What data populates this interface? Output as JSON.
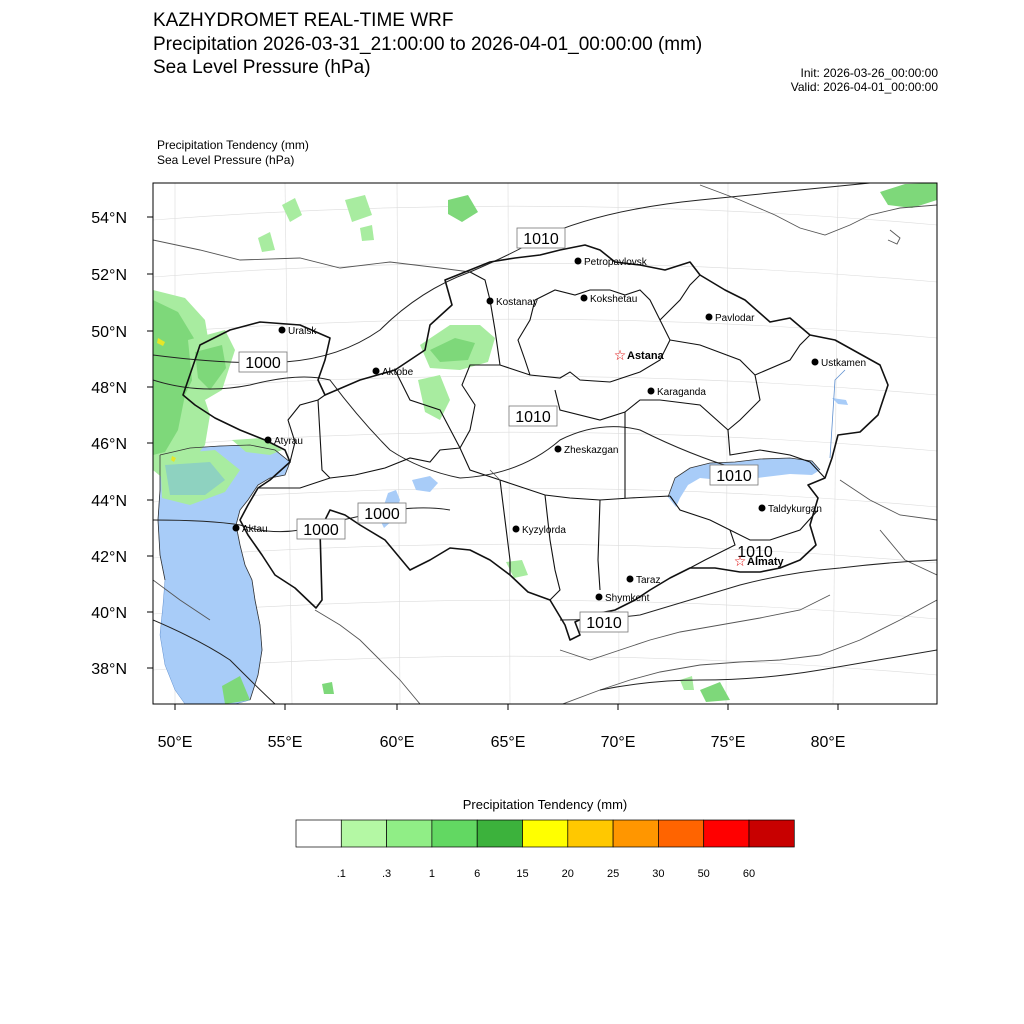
{
  "header": {
    "title": "KAZHYDROMET REAL-TIME WRF",
    "line2": "Precipitation 2026-03-31_21:00:00 to 2026-04-01_00:00:00 (mm)",
    "line3": "Sea Level Pressure  (hPa)",
    "init": "Init: 2026-03-26_00:00:00",
    "valid": "Valid: 2026-04-01_00:00:00"
  },
  "subtitle": {
    "line1": "Precipitation Tendency   (mm)",
    "line2": "Sea Level Pressure   (hPa)"
  },
  "axes": {
    "lat_labels": [
      "54°N",
      "52°N",
      "50°N",
      "48°N",
      "46°N",
      "44°N",
      "42°N",
      "40°N",
      "38°N"
    ],
    "lon_labels": [
      "50°E",
      "55°E",
      "60°E",
      "65°E",
      "70°E",
      "75°E",
      "80°E"
    ]
  },
  "cities": [
    {
      "name": "Petropavlovsk",
      "capital": false
    },
    {
      "name": "Kostanay",
      "capital": false
    },
    {
      "name": "Kokshetau",
      "capital": false
    },
    {
      "name": "Pavlodar",
      "capital": false
    },
    {
      "name": "Uralsk",
      "capital": false
    },
    {
      "name": "Astana",
      "capital": true
    },
    {
      "name": "Ustkamen",
      "capital": false
    },
    {
      "name": "Aktobe",
      "capital": false
    },
    {
      "name": "Karaganda",
      "capital": false
    },
    {
      "name": "Atyrau",
      "capital": false
    },
    {
      "name": "Zheskazgan",
      "capital": false
    },
    {
      "name": "Taldykurgan",
      "capital": false
    },
    {
      "name": "Aktau",
      "capital": false
    },
    {
      "name": "Kyzylorda",
      "capital": false
    },
    {
      "name": "Almaty",
      "capital": true
    },
    {
      "name": "Taraz",
      "capital": false
    },
    {
      "name": "Shymkent",
      "capital": false
    }
  ],
  "isobar_labels": [
    "1010",
    "1000",
    "1010",
    "1010",
    "1000",
    "1000",
    "1010",
    "1010"
  ],
  "legend": {
    "title": "Precipitation Tendency (mm)",
    "colors": [
      "#ffffff",
      "#b4f8a4",
      "#90ee86",
      "#62d862",
      "#3cb23c",
      "#ffff00",
      "#ffc800",
      "#ff9600",
      "#ff6400",
      "#ff0000",
      "#c80000"
    ],
    "labels": [
      ".1",
      ".3",
      "1",
      "6",
      "15",
      "20",
      "25",
      "30",
      "50",
      "60"
    ]
  },
  "colors": {
    "water": "#a8ccf8",
    "light_green": "#a8ecA0",
    "green": "#7ed87a",
    "capital_star": "#e00000"
  }
}
